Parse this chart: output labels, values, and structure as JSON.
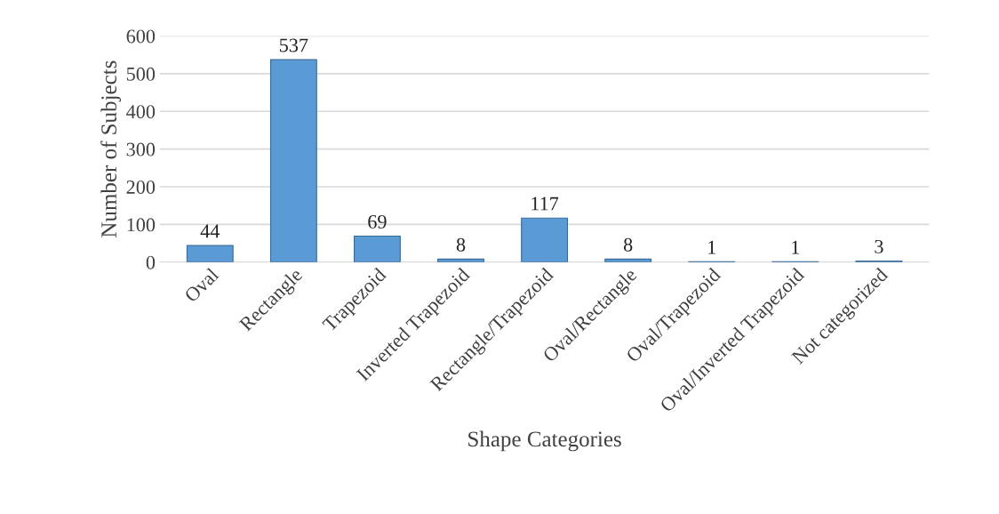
{
  "chart_data": {
    "type": "bar",
    "xlabel": "Shape Categories",
    "ylabel": "Number of Subjects",
    "categories": [
      "Oval",
      "Rectangle",
      "Trapezoid",
      "Inverted Trapezoid",
      "Rectangle/Trapezoid",
      "Oval/Rectangle",
      "Oval/Trapezoid",
      "Oval/Inverted Trapezoid",
      "Not categorized"
    ],
    "values": [
      44,
      537,
      69,
      8,
      117,
      8,
      1,
      1,
      3
    ],
    "color": "#5b9bd5",
    "ylim": [
      0,
      600
    ],
    "yticks": [
      0,
      100,
      200,
      300,
      400,
      500,
      600
    ],
    "grid": "y",
    "data_labels": true
  }
}
